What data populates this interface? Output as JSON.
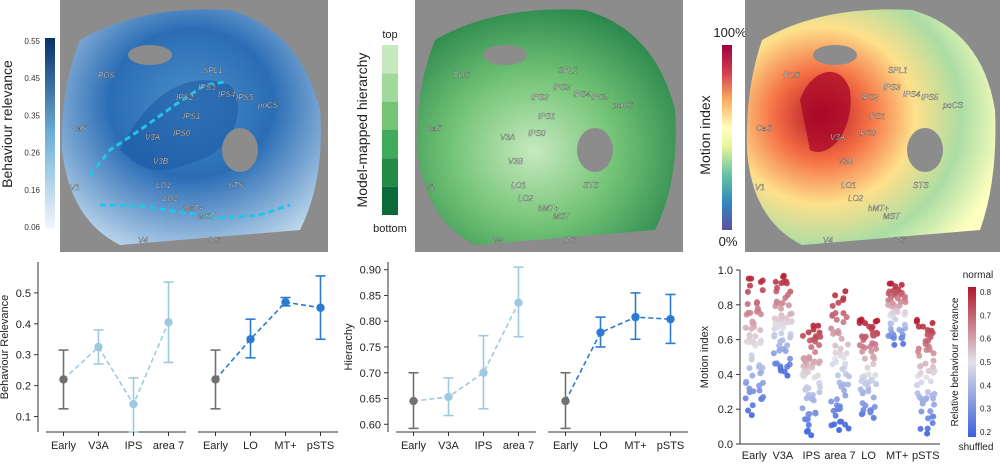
{
  "brain_maps": {
    "roi_labels": [
      "POS",
      "SPL1",
      "IPS3",
      "IPS4",
      "IPS2",
      "IPS5",
      "poCS",
      "IPS1",
      "IPS0",
      "V3A",
      "V3B",
      "CaS",
      "V1",
      "LO1",
      "LO2",
      "hMT+",
      "MST",
      "STS",
      "ITS",
      "V4"
    ],
    "map_a": {
      "colorbar_label": "Behaviour relevance",
      "ticks": [
        "0.55",
        "0.45",
        "0.35",
        "0.26",
        "0.16",
        "0.06"
      ],
      "color_low": "#f2f6fc",
      "color_high": "#08306b"
    },
    "map_b": {
      "colorbar_label": "Model-mapped hierarchy",
      "tick_top": "top",
      "tick_bottom": "bottom",
      "colors": [
        "#c7e9c0",
        "#a1d99b",
        "#74c476",
        "#41ab5d",
        "#238b45",
        "#0b6a3a"
      ]
    },
    "map_c": {
      "colorbar_label": "Motion index",
      "tick_top": "100%",
      "tick_bottom": "0%",
      "colors": [
        "#9e0142",
        "#d53e4f",
        "#f46d43",
        "#fdae61",
        "#fee08b",
        "#ffffbf",
        "#e6f598",
        "#abdda4",
        "#66c2a5",
        "#3288bd",
        "#5e4fa2"
      ]
    }
  },
  "chart_data": [
    {
      "type": "line",
      "id": "behaviour_relevance",
      "ylabel": "Behaviour Relevance",
      "ylim": [
        0.05,
        0.6
      ],
      "yticks": [
        "0.1",
        "0.2",
        "0.3",
        "0.4",
        "0.5"
      ],
      "groups": [
        {
          "categories": [
            "Early",
            "V3A",
            "IPS",
            "area 7"
          ],
          "values": [
            0.22,
            0.325,
            0.14,
            0.405
          ],
          "err_low": [
            0.125,
            0.27,
            0.05,
            0.275
          ],
          "err_high": [
            0.315,
            0.38,
            0.225,
            0.535
          ],
          "colors": [
            "#707070",
            "#9ecae1",
            "#9ecae1",
            "#9ecae1"
          ],
          "line_color": "#9ecae1"
        },
        {
          "categories": [
            "Early",
            "LO",
            "MT+",
            "pSTS"
          ],
          "values": [
            0.22,
            0.35,
            0.47,
            0.452
          ],
          "err_low": [
            0.125,
            0.29,
            0.458,
            0.35
          ],
          "err_high": [
            0.315,
            0.415,
            0.485,
            0.555
          ],
          "colors": [
            "#707070",
            "#2b7bd3",
            "#2b7bd3",
            "#2b7bd3"
          ],
          "line_color": "#2b7bd3"
        }
      ]
    },
    {
      "type": "line",
      "id": "hierarchy",
      "ylabel": "Hierarchy",
      "ylim": [
        0.585,
        0.915
      ],
      "yticks": [
        "0.60",
        "0.65",
        "0.70",
        "0.75",
        "0.80",
        "0.85",
        "0.90"
      ],
      "groups": [
        {
          "categories": [
            "Early",
            "V3A",
            "IPS",
            "area 7"
          ],
          "values": [
            0.645,
            0.653,
            0.7,
            0.836
          ],
          "err_low": [
            0.592,
            0.617,
            0.63,
            0.77
          ],
          "err_high": [
            0.7,
            0.69,
            0.772,
            0.905
          ],
          "colors": [
            "#707070",
            "#9ecae1",
            "#9ecae1",
            "#9ecae1"
          ],
          "line_color": "#9ecae1"
        },
        {
          "categories": [
            "Early",
            "LO",
            "MT+",
            "pSTS"
          ],
          "values": [
            0.645,
            0.778,
            0.808,
            0.804
          ],
          "err_low": [
            0.592,
            0.75,
            0.765,
            0.757
          ],
          "err_high": [
            0.7,
            0.808,
            0.855,
            0.852
          ],
          "colors": [
            "#707070",
            "#2b7bd3",
            "#2b7bd3",
            "#2b7bd3"
          ],
          "line_color": "#2b7bd3"
        }
      ]
    },
    {
      "type": "scatter",
      "id": "motion_index",
      "ylabel": "Motion index",
      "ylim": [
        0.0,
        1.0
      ],
      "yticks": [
        "0.0",
        "0.2",
        "0.4",
        "0.6",
        "0.8",
        "1.0"
      ],
      "categories": [
        "Early",
        "V3A",
        "IPS",
        "area 7",
        "LO",
        "MT+",
        "pSTS"
      ],
      "ranges": [
        [
          0.15,
          0.98
        ],
        [
          0.38,
          0.98
        ],
        [
          0.05,
          0.7
        ],
        [
          0.08,
          0.9
        ],
        [
          0.1,
          0.72
        ],
        [
          0.55,
          0.93
        ],
        [
          0.05,
          0.72
        ]
      ],
      "colorbar": {
        "label": "Relative behaviour relevance",
        "ticks": [
          "0.8",
          "0.7",
          "0.6",
          "0.5",
          "0.4",
          "0.3",
          "0.2"
        ],
        "top_label": "normal",
        "bottom_label": "shuffled"
      }
    }
  ]
}
